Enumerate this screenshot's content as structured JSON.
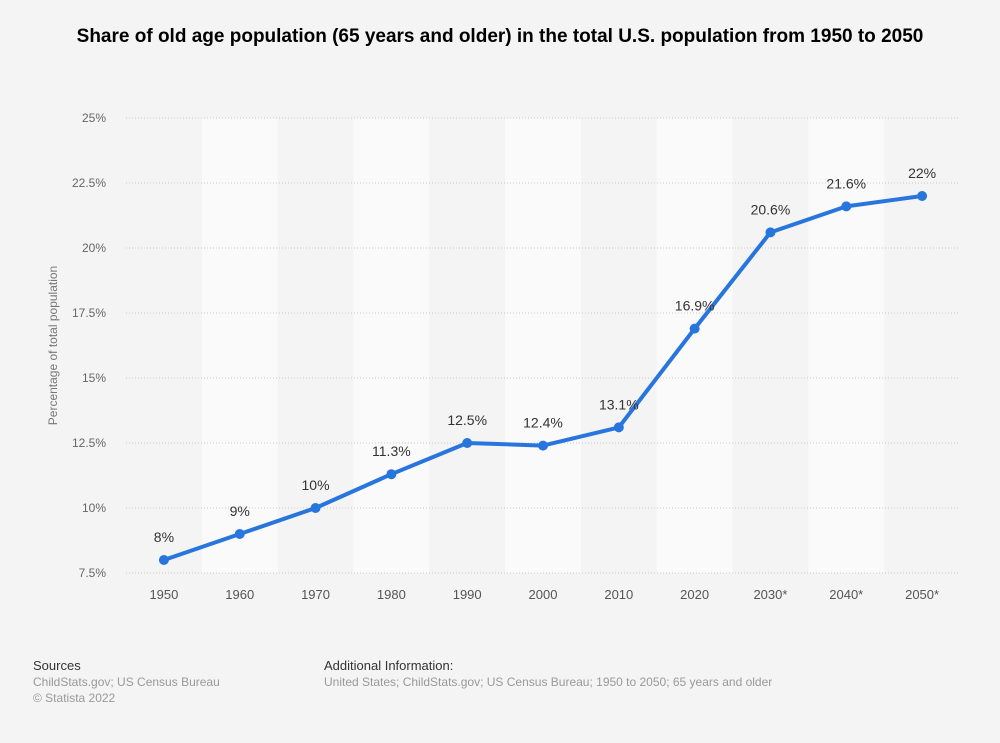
{
  "chart_data": {
    "type": "line",
    "title": "Share of old age population (65 years and older) in the total U.S. population from 1950 to 2050",
    "xlabel": "",
    "ylabel": "Percentage of total population",
    "categories": [
      "1950",
      "1960",
      "1970",
      "1980",
      "1990",
      "2000",
      "2010",
      "2020",
      "2030*",
      "2040*",
      "2050*"
    ],
    "values": [
      8,
      9,
      10,
      11.3,
      12.5,
      12.4,
      13.1,
      16.9,
      20.6,
      21.6,
      22
    ],
    "data_labels": [
      "8%",
      "9%",
      "10%",
      "11.3%",
      "12.5%",
      "12.4%",
      "13.1%",
      "16.9%",
      "20.6%",
      "21.6%",
      "22%"
    ],
    "ylim": [
      7.5,
      25
    ],
    "yticks": [
      7.5,
      10,
      12.5,
      15,
      17.5,
      20,
      22.5,
      25
    ],
    "ytick_labels": [
      "7.5%",
      "10%",
      "12.5%",
      "15%",
      "17.5%",
      "20%",
      "22.5%",
      "25%"
    ],
    "grid": true,
    "line_color": "#2876dd"
  },
  "footer": {
    "sources_heading": "Sources",
    "sources_text": "ChildStats.gov; US Census Bureau",
    "copyright": "© Statista 2022",
    "additional_heading": "Additional Information:",
    "additional_text": "United States; ChildStats.gov; US Census Bureau; 1950 to 2050; 65 years and older"
  }
}
